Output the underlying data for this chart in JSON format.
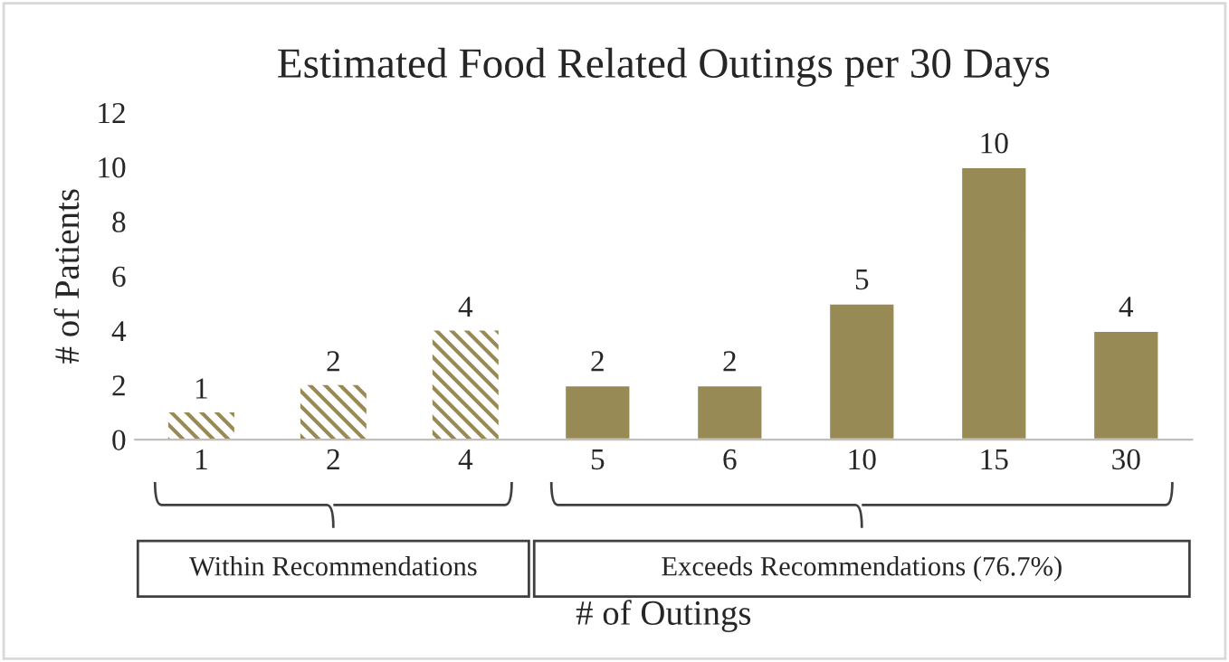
{
  "chart_data": {
    "type": "bar",
    "title": "Estimated Food Related Outings per 30 Days",
    "categories": [
      "1",
      "2",
      "4",
      "5",
      "6",
      "10",
      "15",
      "30"
    ],
    "series": [
      {
        "color": "#978a55",
        "values": [
          1,
          2,
          4,
          null,
          null,
          null,
          null,
          null
        ]
      },
      {
        "color": "#978a55",
        "values": [
          null,
          null,
          null,
          2,
          2,
          5,
          10,
          4
        ]
      }
    ],
    "xlabel": "# of Outings",
    "ylabel": "# of Patients",
    "ylim": [
      0,
      12
    ],
    "yticks": [
      0,
      2,
      4,
      6,
      8,
      10,
      12
    ],
    "data_labels": true,
    "grid": false,
    "annotations": [
      "Within Recommendations",
      "Exceeds Recommendations (76.7%)"
    ]
  }
}
